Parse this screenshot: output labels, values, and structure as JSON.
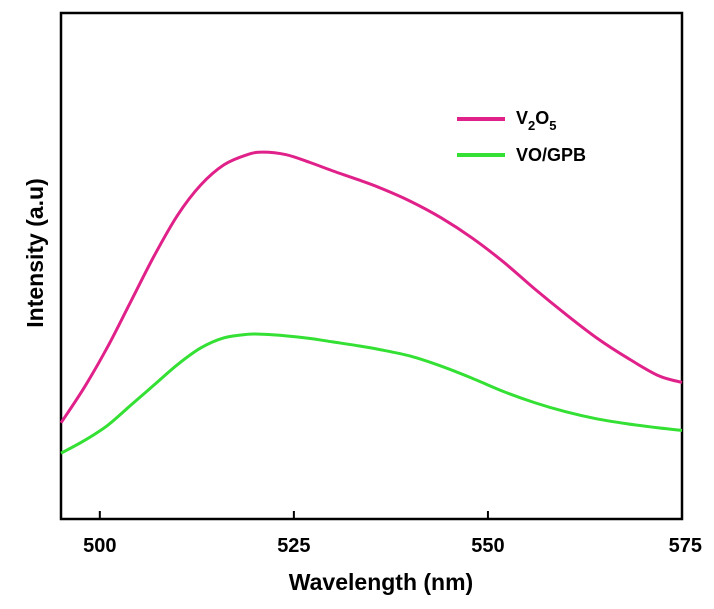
{
  "chart_data": {
    "type": "line",
    "title": "",
    "xlabel": "Wavelength (nm)",
    "ylabel": "Intensity (a.u)",
    "xlim": [
      495,
      575
    ],
    "ylim": [
      0,
      1
    ],
    "x_ticks": [
      500,
      525,
      550,
      575
    ],
    "y_ticks_shown": false,
    "grid": false,
    "legend": {
      "placement": "top-right"
    },
    "series": [
      {
        "name": "V2O5",
        "label_base": "V",
        "label_sub1": "2",
        "label_mid": "O",
        "label_sub2": "5",
        "color": "#e0218a",
        "x": [
          495,
          498,
          501,
          504,
          507,
          510,
          513,
          516,
          519,
          521,
          524,
          527,
          530,
          533,
          536,
          540,
          544,
          548,
          552,
          556,
          560,
          564,
          568,
          572,
          575
        ],
        "y": [
          0.19,
          0.26,
          0.34,
          0.43,
          0.52,
          0.6,
          0.66,
          0.7,
          0.72,
          0.725,
          0.72,
          0.705,
          0.688,
          0.672,
          0.655,
          0.628,
          0.595,
          0.555,
          0.508,
          0.455,
          0.405,
          0.358,
          0.318,
          0.283,
          0.27
        ]
      },
      {
        "name": "VO/GPB",
        "color": "#33e033",
        "x": [
          495,
          498,
          501,
          504,
          507,
          510,
          513,
          516,
          519,
          521,
          524,
          527,
          530,
          533,
          536,
          540,
          544,
          548,
          552,
          556,
          560,
          564,
          568,
          572,
          575
        ],
        "y": [
          0.13,
          0.155,
          0.185,
          0.225,
          0.265,
          0.305,
          0.338,
          0.358,
          0.365,
          0.365,
          0.362,
          0.357,
          0.35,
          0.343,
          0.335,
          0.322,
          0.302,
          0.278,
          0.252,
          0.23,
          0.212,
          0.198,
          0.188,
          0.18,
          0.175
        ]
      }
    ]
  }
}
